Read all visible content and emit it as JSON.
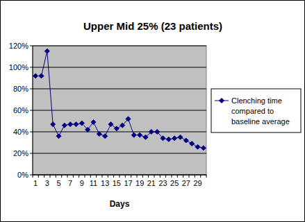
{
  "chart_data": {
    "type": "line",
    "title": "Upper Mid 25% (23 patients)",
    "x_label": "Days",
    "categories": [
      "1",
      null,
      "3",
      null,
      "5",
      null,
      "7",
      null,
      "9",
      null,
      "11",
      null,
      "13",
      null,
      "15",
      null,
      "17",
      null,
      "19",
      null,
      "21",
      null,
      "23",
      null,
      "25",
      null,
      "27",
      null,
      "29",
      null
    ],
    "series": [
      {
        "name": "Clenching time compared to baseline average",
        "color": "#000080",
        "marker": "diamond",
        "values": [
          92,
          92,
          115,
          47,
          36,
          46,
          47,
          47,
          48,
          42,
          49,
          38,
          36,
          47,
          43,
          46,
          52,
          37,
          37,
          35,
          40,
          40,
          34,
          33,
          34,
          35,
          32,
          29,
          26,
          25
        ]
      }
    ],
    "ylim": [
      0,
      120
    ],
    "yticks": [
      {
        "value": 0,
        "label": "0%"
      },
      {
        "value": 20,
        "label": "20%"
      },
      {
        "value": 40,
        "label": "40%"
      },
      {
        "value": 60,
        "label": "60%"
      },
      {
        "value": 80,
        "label": "80%"
      },
      {
        "value": 100,
        "label": "100%"
      },
      {
        "value": 120,
        "label": "120%"
      }
    ],
    "grid": true,
    "legend": "right"
  }
}
